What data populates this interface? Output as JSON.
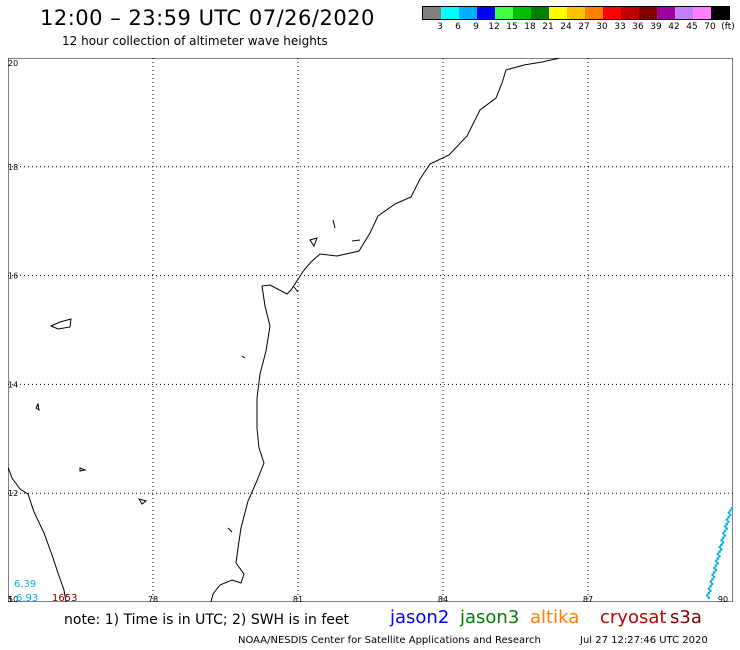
{
  "title": "12:00 – 23:59 UTC 07/26/2020",
  "subtitle": "12 hour collection of altimeter wave heights",
  "colorbar": {
    "colors": [
      "#808080",
      "#00ffff",
      "#00b0ff",
      "#0000ff",
      "#40ff40",
      "#00c000",
      "#008000",
      "#ffff00",
      "#ffc000",
      "#ff8000",
      "#ff0000",
      "#c00000",
      "#800000",
      "#a000a0",
      "#c080ff",
      "#ff80ff",
      "#000000"
    ],
    "labels": [
      "3",
      "6",
      "9",
      "12",
      "15",
      "18",
      "21",
      "24",
      "27",
      "30",
      "33",
      "36",
      "39",
      "42",
      "45",
      "70",
      "(ft)"
    ]
  },
  "map": {
    "lon_ticks": [
      "75",
      "78",
      "81",
      "84",
      "87",
      "90"
    ],
    "lat_ticks": [
      "10",
      "12",
      "14",
      "16",
      "18",
      "20"
    ],
    "point_labels": [
      {
        "text": "6.39",
        "color": "#00b0e0"
      },
      {
        "text": "6.93",
        "color": "#00b0e0"
      },
      {
        "text": "1653",
        "color": "#800000"
      }
    ]
  },
  "note": "note: 1) Time is in UTC; 2) SWH is in feet",
  "satellites": [
    {
      "name": "jason2",
      "color": "#0000ff"
    },
    {
      "name": "jason3",
      "color": "#008000"
    },
    {
      "name": "altika",
      "color": "#ff8000"
    },
    {
      "name": "cryosat",
      "color": "#c00000"
    },
    {
      "name": "s3a",
      "color": "#800000"
    }
  ],
  "credit": "NOAA/NESDIS Center for Satellite Applications and Research",
  "timestamp": "Jul 27 12:27:46 UTC 2020"
}
